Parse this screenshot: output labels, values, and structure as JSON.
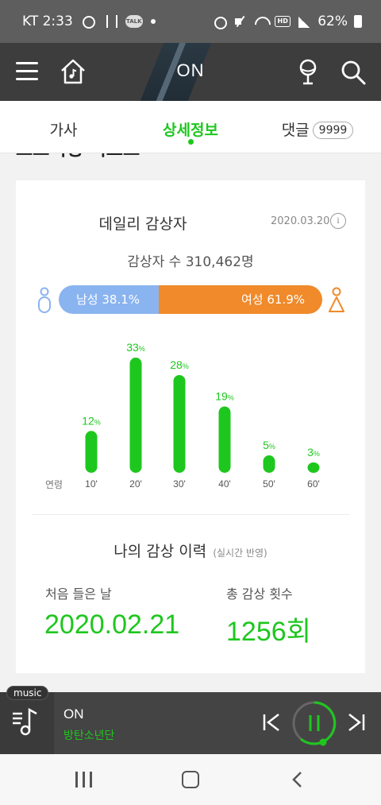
{
  "status_bar": {
    "carrier_time": "KT 2:33",
    "battery": "62%"
  },
  "header": {
    "title": "ON"
  },
  "tabs": [
    {
      "label": "가사"
    },
    {
      "label": "상세정보"
    },
    {
      "label": "댓글",
      "badge": "9999"
    }
  ],
  "section": {
    "partial_heading": "스트리밍 리포트"
  },
  "daily": {
    "title": "데일리 감상자",
    "date": "2020.03.20",
    "info": "i",
    "listener_count": "감상자 수 310,462명",
    "male": {
      "label": "남성 38.1%",
      "percent": 38.1
    },
    "female": {
      "label": "여성 61.9%",
      "percent": 61.9
    }
  },
  "chart_data": {
    "type": "bar",
    "xlabel": "연령",
    "categories": [
      "10'",
      "20'",
      "30'",
      "40'",
      "50'",
      "60'"
    ],
    "values": [
      12,
      33,
      28,
      19,
      5,
      3
    ],
    "unit": "%",
    "color": "#1ec71e"
  },
  "history": {
    "title": "나의 감상 이력",
    "subtitle": "(실시간 반영)",
    "first_label": "처음 들은 날",
    "first_value": "2020.02.21",
    "total_label": "총 감상 횟수",
    "total_value": "1256회"
  },
  "player": {
    "tag": "music",
    "song": "ON",
    "artist": "방탄소년단"
  },
  "colors": {
    "accent": "#1ec71e",
    "male": "#8ab4f0",
    "female": "#f08a2a"
  }
}
